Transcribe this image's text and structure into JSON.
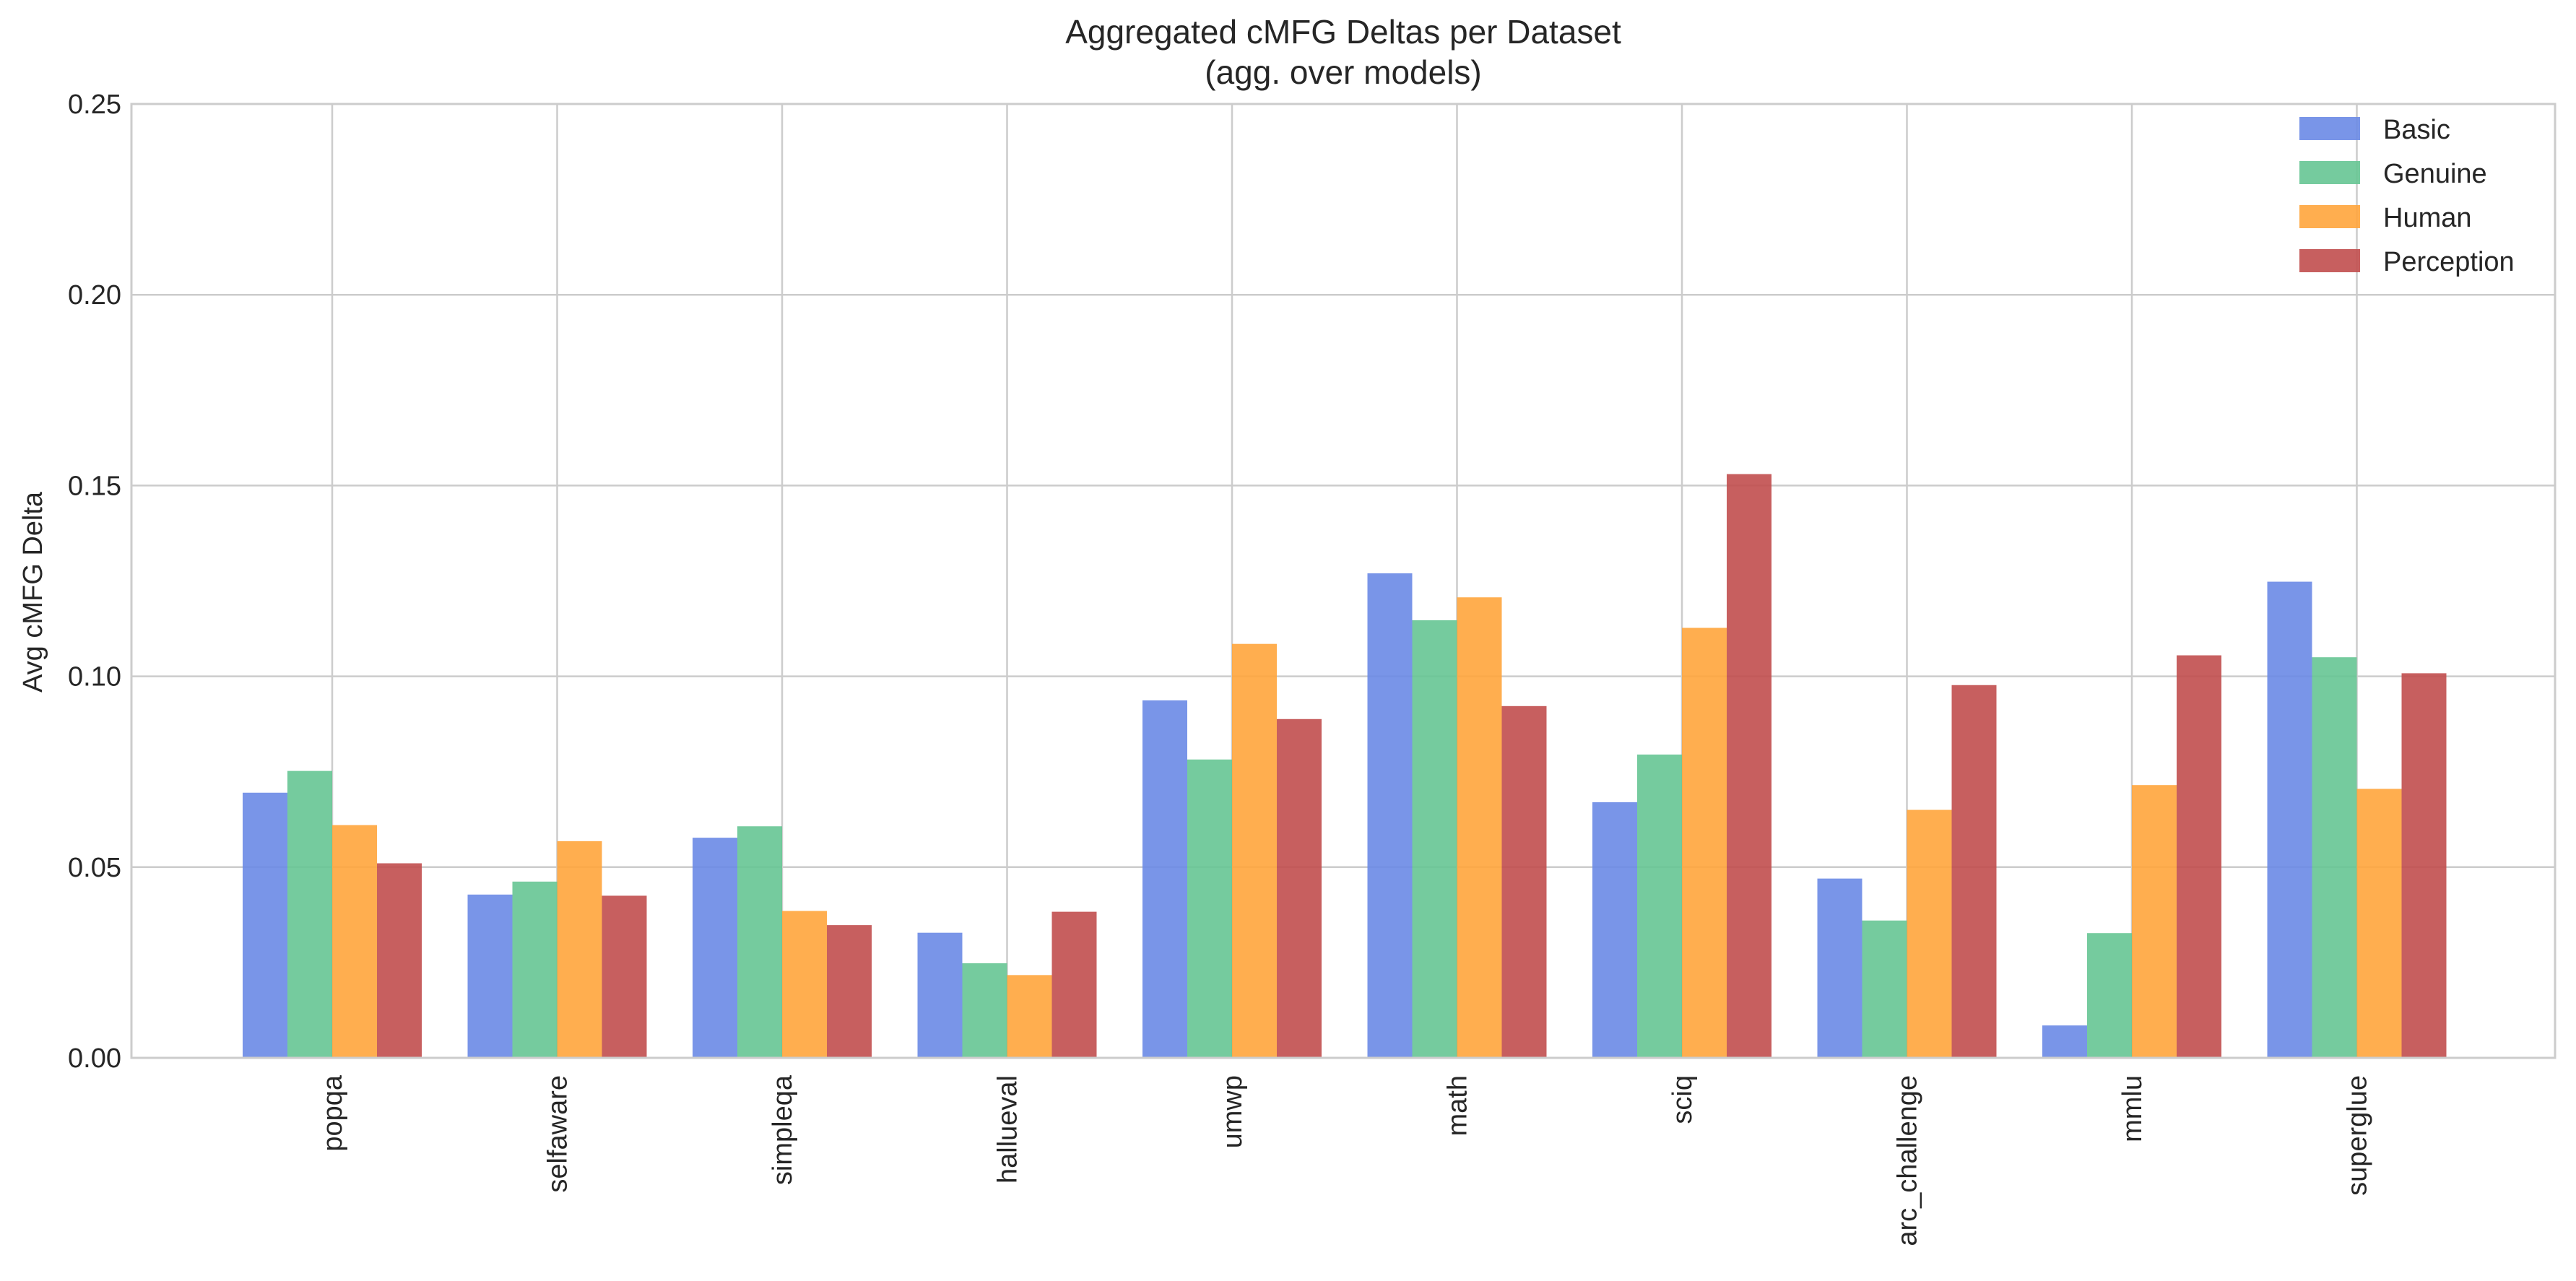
{
  "chart_data": {
    "type": "bar",
    "title": "Aggregated cMFG Deltas per Dataset",
    "subtitle": "(agg. over models)",
    "xlabel": "",
    "ylabel": "Avg cMFG Delta",
    "ylim": [
      0,
      0.25
    ],
    "yticks": [
      "0.00",
      "0.05",
      "0.10",
      "0.15",
      "0.20",
      "0.25"
    ],
    "grid": true,
    "legend_position": "top-right",
    "categories": [
      "popqa",
      "selfaware",
      "simpleqa",
      "hallueval",
      "umwp",
      "math",
      "sciq",
      "arc_challenge",
      "mmlu",
      "superglue"
    ],
    "series": [
      {
        "name": "Basic",
        "color": "#6a8ae6",
        "values": [
          0.0695,
          0.0428,
          0.0577,
          0.0328,
          0.0937,
          0.127,
          0.067,
          0.047,
          0.0085,
          0.1248
        ]
      },
      {
        "name": "Genuine",
        "color": "#66c594",
        "values": [
          0.0752,
          0.0462,
          0.0607,
          0.0248,
          0.0782,
          0.1147,
          0.0795,
          0.036,
          0.0327,
          0.105
        ]
      },
      {
        "name": "Human",
        "color": "#ffa53c",
        "values": [
          0.061,
          0.0568,
          0.0385,
          0.0217,
          0.1085,
          0.1207,
          0.1127,
          0.065,
          0.0715,
          0.0705
        ]
      },
      {
        "name": "Perception",
        "color": "#c14e4e",
        "values": [
          0.051,
          0.0425,
          0.0348,
          0.0383,
          0.0888,
          0.0922,
          0.153,
          0.0977,
          0.1055,
          0.1008
        ]
      }
    ]
  }
}
